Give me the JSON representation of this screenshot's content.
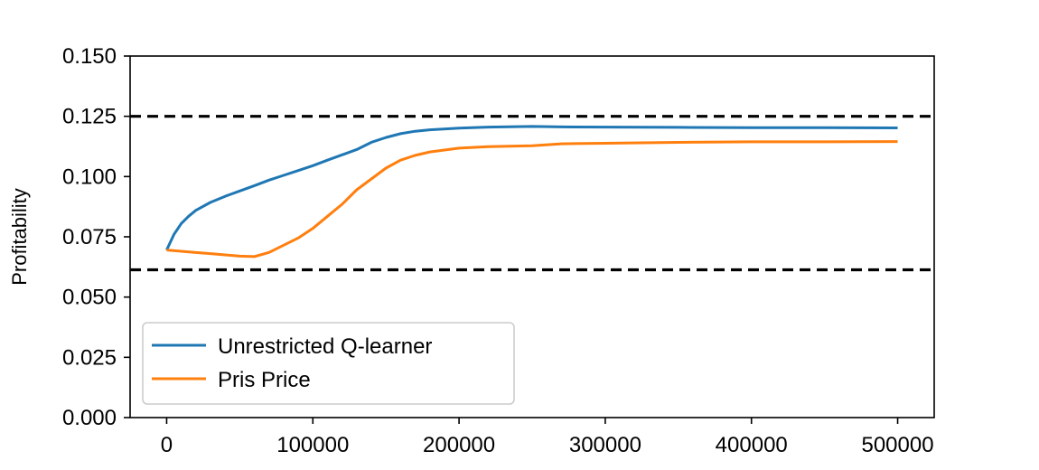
{
  "chart_data": {
    "type": "line",
    "ylabel": "Profitability",
    "xlim": [
      -25000,
      525000
    ],
    "ylim": [
      0.0,
      0.15
    ],
    "xticks": [
      {
        "value": 0,
        "label": "0"
      },
      {
        "value": 100000,
        "label": "100000"
      },
      {
        "value": 200000,
        "label": "200000"
      },
      {
        "value": 300000,
        "label": "300000"
      },
      {
        "value": 400000,
        "label": "400000"
      },
      {
        "value": 500000,
        "label": "500000"
      }
    ],
    "yticks": [
      {
        "value": 0.0,
        "label": "0.000"
      },
      {
        "value": 0.025,
        "label": "0.025"
      },
      {
        "value": 0.05,
        "label": "0.050"
      },
      {
        "value": 0.075,
        "label": "0.075"
      },
      {
        "value": 0.1,
        "label": "0.100"
      },
      {
        "value": 0.125,
        "label": "0.125"
      },
      {
        "value": 0.15,
        "label": "0.150"
      }
    ],
    "hlines": [
      {
        "y": 0.125,
        "style": "dashed",
        "color": "#000000"
      },
      {
        "y": 0.0613,
        "style": "dashed",
        "color": "#000000"
      }
    ],
    "legend_position": "lower-left",
    "grid": false,
    "series": [
      {
        "name": "Unrestricted Q-learner",
        "color": "#1f77b4",
        "x": [
          0,
          5000,
          10000,
          15000,
          20000,
          30000,
          40000,
          50000,
          60000,
          70000,
          80000,
          90000,
          100000,
          110000,
          120000,
          130000,
          140000,
          150000,
          160000,
          170000,
          180000,
          200000,
          220000,
          250000,
          270000,
          300000,
          350000,
          400000,
          450000,
          500000
        ],
        "y": [
          0.0695,
          0.076,
          0.0805,
          0.0835,
          0.086,
          0.0893,
          0.0918,
          0.094,
          0.0962,
          0.0985,
          0.1005,
          0.1025,
          0.1045,
          0.1068,
          0.109,
          0.1112,
          0.1142,
          0.1162,
          0.1178,
          0.1188,
          0.1194,
          0.1201,
          0.1205,
          0.1208,
          0.1206,
          0.1205,
          0.1204,
          0.1203,
          0.1203,
          0.1202
        ]
      },
      {
        "name": "Pris  Price",
        "color": "#ff7f0e",
        "x": [
          0,
          10000,
          20000,
          30000,
          40000,
          50000,
          60000,
          70000,
          80000,
          90000,
          100000,
          110000,
          120000,
          130000,
          140000,
          150000,
          160000,
          170000,
          180000,
          190000,
          200000,
          220000,
          250000,
          270000,
          300000,
          350000,
          400000,
          450000,
          500000
        ],
        "y": [
          0.0695,
          0.069,
          0.0685,
          0.068,
          0.0675,
          0.067,
          0.0668,
          0.0685,
          0.0715,
          0.0745,
          0.0785,
          0.0835,
          0.0885,
          0.0945,
          0.099,
          0.1035,
          0.1068,
          0.1088,
          0.1102,
          0.111,
          0.1118,
          0.1124,
          0.1128,
          0.1136,
          0.1138,
          0.1142,
          0.1144,
          0.1144,
          0.1145
        ]
      }
    ]
  }
}
